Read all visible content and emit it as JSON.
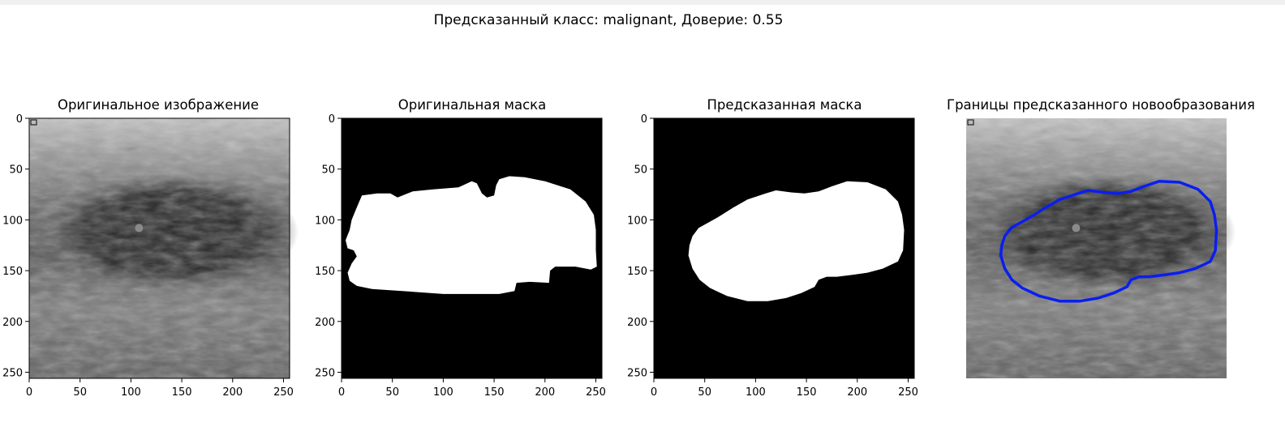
{
  "figure": {
    "suptitle": "Предсказанный класс: malignant, Доверие: 0.55"
  },
  "panels": [
    {
      "title": "Оригинальное изображение",
      "kind": "ultrasound",
      "show_axes": true
    },
    {
      "title": "Оригинальная маска",
      "kind": "mask-original",
      "show_axes": true
    },
    {
      "title": "Предсказанная маска",
      "kind": "mask-predicted",
      "show_axes": true
    },
    {
      "title": "Границы предсказанного новообразования",
      "kind": "ultrasound-contour",
      "show_axes": false
    }
  ],
  "axes": {
    "x_ticks": [
      0,
      50,
      100,
      150,
      200,
      250
    ],
    "y_ticks": [
      0,
      50,
      100,
      150,
      200,
      250
    ],
    "range": [
      0,
      256
    ]
  },
  "colors": {
    "contour": "#0a1ef0",
    "mask_fg": "#ffffff",
    "mask_bg": "#000000"
  }
}
